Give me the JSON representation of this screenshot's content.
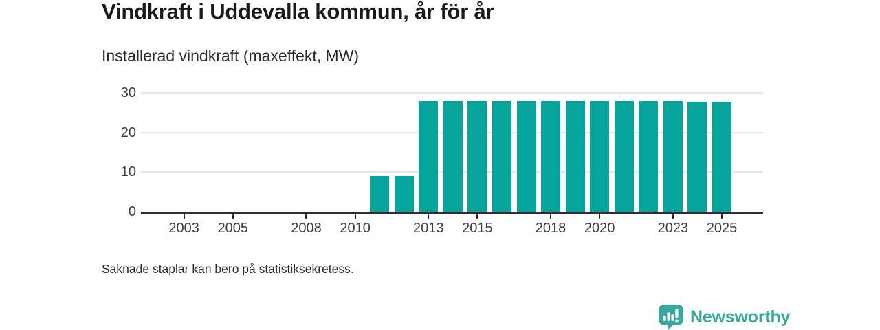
{
  "header": {
    "title": "Vindkraft i Uddevalla kommun, år för år",
    "subtitle": "Installerad vindkraft (maxeffekt, MW)"
  },
  "chart_data": {
    "type": "bar",
    "title": "Vindkraft i Uddevalla kommun, år för år",
    "ylabel": "Installerad vindkraft (maxeffekt, MW)",
    "xlabel": "",
    "categories": [
      2002,
      2003,
      2004,
      2005,
      2006,
      2007,
      2008,
      2009,
      2010,
      2011,
      2012,
      2013,
      2014,
      2015,
      2016,
      2017,
      2018,
      2019,
      2020,
      2021,
      2022,
      2023,
      2024,
      2025
    ],
    "values": [
      null,
      null,
      null,
      null,
      null,
      null,
      null,
      null,
      null,
      9,
      9,
      28,
      28,
      28,
      28,
      28,
      28,
      28,
      28,
      28,
      28,
      28,
      27.8,
      27.8
    ],
    "x_tick_labels": [
      2003,
      2005,
      2008,
      2010,
      2013,
      2015,
      2018,
      2020,
      2023,
      2025
    ],
    "y_ticks": [
      0,
      10,
      20,
      30
    ],
    "ylim": [
      0,
      30
    ],
    "grid": "horizontal",
    "legend": "none",
    "annotation": "Saknade staplar kan bero på statistiksekretess."
  },
  "footer": {
    "note": "Saknade staplar kan bero på statistiksekretess."
  },
  "branding": {
    "name": "Newsworthy",
    "logo_icon": "newsworthy-speech-bubble-bar-chart-icon"
  },
  "colors": {
    "bar": "#07a49b",
    "axis": "#2e2e2e",
    "grid": "#e5e5e5",
    "title_text": "#181b1e",
    "tick_text": "#3a3c3e",
    "brand": "#37a89d"
  }
}
